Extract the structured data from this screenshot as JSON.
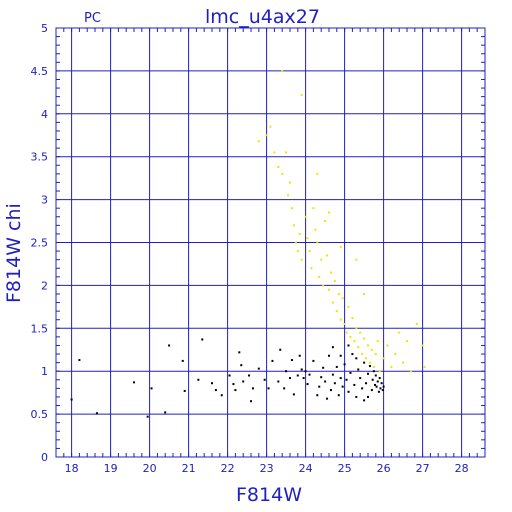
{
  "header": {
    "left_label": "PC",
    "title": "lmc_u4ax27"
  },
  "chart_data": {
    "type": "scatter",
    "xlabel": "F814W",
    "ylabel": "F814W chi",
    "xlim": [
      17.6,
      28.6
    ],
    "ylim": [
      0,
      5
    ],
    "x_ticks": [
      18,
      19,
      20,
      21,
      22,
      23,
      24,
      25,
      26,
      27,
      28
    ],
    "y_ticks": [
      0,
      0.5,
      1,
      1.5,
      2,
      2.5,
      3,
      3.5,
      4,
      4.5,
      5
    ],
    "grid": true,
    "colors": {
      "axes": "#2020c0",
      "grid": "#2020c0",
      "series_black": "#000000",
      "series_yellow": "#e8e800"
    },
    "series": [
      {
        "color": "#000000",
        "points": [
          [
            18.0,
            0.67
          ],
          [
            18.2,
            1.13
          ],
          [
            18.65,
            0.51
          ],
          [
            19.6,
            0.87
          ],
          [
            19.95,
            0.47
          ],
          [
            20.05,
            0.8
          ],
          [
            20.4,
            0.52
          ],
          [
            20.5,
            1.3
          ],
          [
            20.85,
            1.12
          ],
          [
            20.9,
            0.77
          ],
          [
            21.25,
            0.9
          ],
          [
            21.35,
            1.37
          ],
          [
            21.6,
            0.86
          ],
          [
            21.7,
            0.78
          ],
          [
            21.85,
            0.72
          ],
          [
            22.05,
            0.95
          ],
          [
            22.15,
            0.85
          ],
          [
            22.2,
            0.78
          ],
          [
            22.3,
            1.22
          ],
          [
            22.35,
            1.07
          ],
          [
            22.4,
            0.88
          ],
          [
            22.55,
            0.95
          ],
          [
            22.6,
            0.65
          ],
          [
            22.65,
            0.8
          ],
          [
            22.8,
            1.03
          ],
          [
            22.95,
            0.9
          ],
          [
            23.05,
            0.8
          ],
          [
            23.15,
            1.12
          ],
          [
            23.3,
            0.88
          ],
          [
            23.35,
            1.25
          ],
          [
            23.45,
            0.8
          ],
          [
            23.5,
            1.0
          ],
          [
            23.6,
            0.92
          ],
          [
            23.65,
            1.13
          ],
          [
            23.7,
            0.73
          ],
          [
            23.8,
            0.95
          ],
          [
            23.85,
            1.18
          ],
          [
            23.9,
            1.02
          ],
          [
            23.95,
            0.92
          ],
          [
            24.0,
            1.0
          ],
          [
            24.05,
            0.85
          ],
          [
            24.1,
            0.96
          ],
          [
            24.2,
            1.12
          ],
          [
            24.3,
            0.72
          ],
          [
            24.35,
            0.82
          ],
          [
            24.4,
            0.93
          ],
          [
            24.45,
            1.04
          ],
          [
            24.5,
            0.88
          ],
          [
            24.55,
            0.68
          ],
          [
            24.6,
            1.18
          ],
          [
            24.65,
            0.78
          ],
          [
            24.7,
            0.96
          ],
          [
            24.75,
            0.86
          ],
          [
            24.8,
            1.05
          ],
          [
            24.85,
            0.72
          ],
          [
            24.9,
            0.92
          ],
          [
            24.95,
            0.82
          ],
          [
            25.0,
            1.08
          ],
          [
            25.05,
            0.9
          ],
          [
            25.1,
            0.76
          ],
          [
            25.15,
            0.98
          ],
          [
            25.2,
            1.2
          ],
          [
            25.25,
            0.84
          ],
          [
            25.3,
            0.7
          ],
          [
            25.35,
            1.02
          ],
          [
            25.4,
            0.92
          ],
          [
            25.45,
            0.8
          ],
          [
            25.5,
            1.1
          ],
          [
            25.55,
            0.86
          ],
          [
            25.6,
            0.97
          ],
          [
            25.65,
            1.06
          ],
          [
            25.7,
            0.78
          ],
          [
            25.72,
            0.9
          ],
          [
            25.75,
            1.0
          ],
          [
            25.78,
            0.84
          ],
          [
            25.8,
            0.95
          ],
          [
            25.82,
            0.82
          ],
          [
            25.85,
            0.88
          ],
          [
            25.88,
            0.76
          ],
          [
            25.9,
            0.92
          ],
          [
            25.92,
            0.8
          ],
          [
            25.95,
            0.86
          ],
          [
            25.98,
            0.78
          ],
          [
            26.0,
            0.82
          ],
          [
            25.6,
            0.7
          ],
          [
            25.5,
            0.66
          ],
          [
            25.3,
            1.15
          ],
          [
            25.1,
            1.3
          ],
          [
            24.9,
            1.18
          ],
          [
            24.7,
            1.28
          ]
        ]
      },
      {
        "color": "#e8e800",
        "points": [
          [
            23.4,
            4.5
          ],
          [
            23.9,
            4.22
          ],
          [
            22.8,
            3.68
          ],
          [
            23.0,
            3.75
          ],
          [
            23.1,
            3.85
          ],
          [
            23.2,
            3.55
          ],
          [
            23.3,
            3.38
          ],
          [
            23.4,
            3.3
          ],
          [
            23.5,
            3.55
          ],
          [
            23.6,
            3.2
          ],
          [
            23.65,
            2.9
          ],
          [
            23.7,
            2.7
          ],
          [
            23.75,
            2.5
          ],
          [
            23.8,
            2.4
          ],
          [
            23.85,
            2.6
          ],
          [
            23.9,
            2.3
          ],
          [
            24.0,
            2.8
          ],
          [
            24.05,
            2.55
          ],
          [
            24.1,
            2.4
          ],
          [
            24.15,
            2.2
          ],
          [
            24.2,
            2.9
          ],
          [
            24.25,
            2.65
          ],
          [
            24.3,
            2.5
          ],
          [
            24.35,
            2.1
          ],
          [
            24.4,
            2.3
          ],
          [
            24.45,
            2.0
          ],
          [
            24.5,
            2.75
          ],
          [
            24.55,
            2.35
          ],
          [
            24.6,
            1.95
          ],
          [
            24.65,
            2.15
          ],
          [
            24.7,
            1.8
          ],
          [
            24.75,
            2.05
          ],
          [
            24.8,
            1.7
          ],
          [
            24.85,
            1.9
          ],
          [
            24.9,
            1.6
          ],
          [
            24.95,
            1.85
          ],
          [
            25.0,
            1.55
          ],
          [
            25.05,
            1.45
          ],
          [
            25.1,
            1.75
          ],
          [
            25.15,
            1.4
          ],
          [
            25.2,
            1.62
          ],
          [
            25.25,
            1.35
          ],
          [
            25.3,
            1.5
          ],
          [
            25.35,
            1.28
          ],
          [
            25.4,
            1.45
          ],
          [
            25.45,
            1.2
          ],
          [
            25.5,
            1.38
          ],
          [
            25.55,
            1.15
          ],
          [
            25.6,
            1.3
          ],
          [
            25.65,
            1.1
          ],
          [
            25.7,
            1.25
          ],
          [
            25.75,
            1.05
          ],
          [
            25.8,
            1.2
          ],
          [
            25.85,
            1.35
          ],
          [
            25.9,
            1.0
          ],
          [
            26.0,
            1.15
          ],
          [
            26.1,
            1.3
          ],
          [
            26.2,
            1.05
          ],
          [
            26.3,
            1.2
          ],
          [
            26.4,
            1.45
          ],
          [
            26.5,
            1.1
          ],
          [
            26.6,
            1.35
          ],
          [
            26.7,
            1.0
          ],
          [
            26.85,
            1.55
          ],
          [
            27.0,
            1.3
          ],
          [
            27.05,
            1.05
          ],
          [
            24.6,
            2.85
          ],
          [
            25.3,
            2.3
          ],
          [
            25.5,
            1.9
          ],
          [
            24.3,
            3.3
          ],
          [
            24.9,
            2.45
          ],
          [
            23.55,
            3.05
          ]
        ]
      }
    ]
  }
}
